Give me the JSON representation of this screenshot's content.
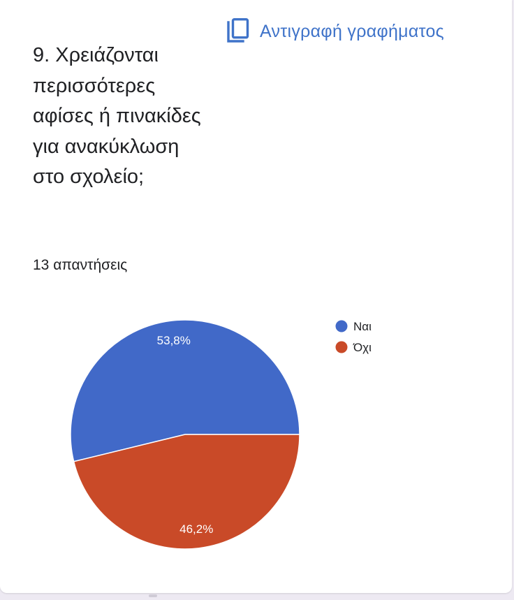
{
  "header": {
    "copy_chart_label": "Αντιγραφή γραφήματος",
    "copy_icon": "copy-icon"
  },
  "question": {
    "title": "9. Χρειάζονται περισσότερες αφίσες ή πινακίδες για ανακύκλωση στο σχολείο;",
    "responses": "13 απαντήσεις"
  },
  "colors": {
    "accent": "#3f73c9",
    "series_yes": "#4169c8",
    "series_no": "#c94a28"
  },
  "chart_data": {
    "type": "pie",
    "categories": [
      "Ναι",
      "Όχι"
    ],
    "values": [
      53.8,
      46.2
    ],
    "labels": [
      "53,8%",
      "46,2%"
    ],
    "colors": [
      "#4169c8",
      "#c94a28"
    ],
    "legend": [
      "Ναι",
      "Όχι"
    ],
    "legend_position": "top-right",
    "start_angle": "3 o'clock, counterclockwise"
  }
}
